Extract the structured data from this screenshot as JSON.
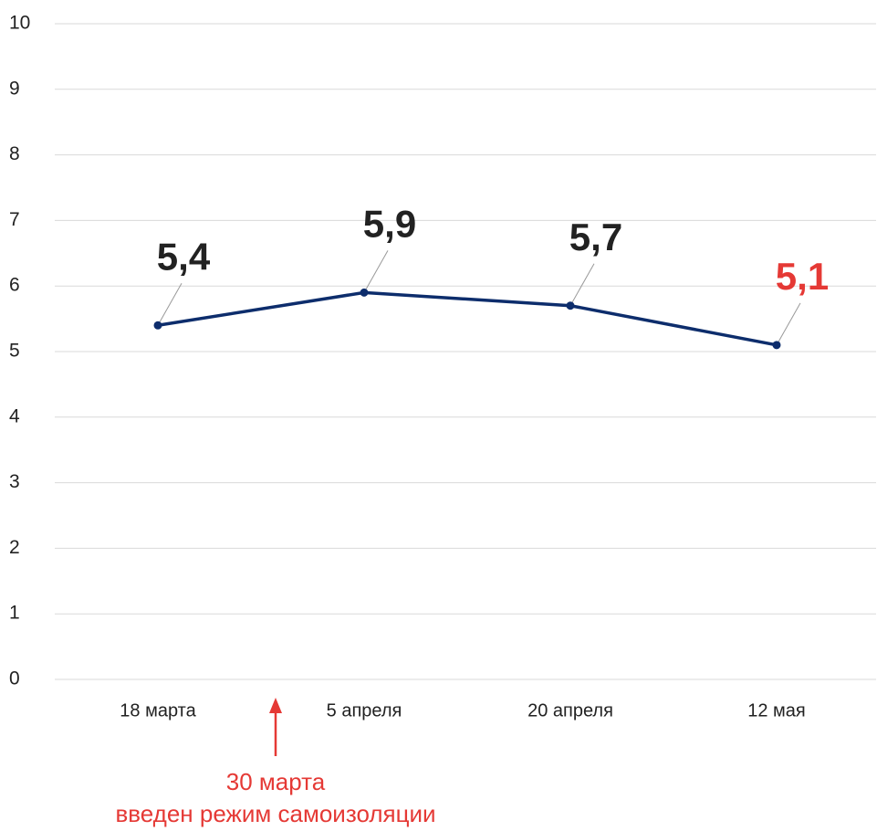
{
  "chart_data": {
    "type": "line",
    "categories": [
      "18 марта",
      "5 апреля",
      "20 апреля",
      "12 мая"
    ],
    "series": [
      {
        "color": "#0d2d6c",
        "values": [
          5.4,
          5.9,
          5.7,
          5.1
        ],
        "value_labels": [
          "5,4",
          "5,9",
          "5,7",
          "5,1"
        ],
        "label_colors": [
          "#222222",
          "#222222",
          "#222222",
          "#e53935"
        ]
      }
    ],
    "ylim": [
      0,
      10
    ],
    "yticks": [
      0,
      1,
      2,
      3,
      4,
      5,
      6,
      7,
      8,
      9,
      10
    ],
    "grid": true,
    "annotation": {
      "lines": [
        "30 марта",
        "введен режим самоизоляции"
      ],
      "color": "#e53935"
    }
  }
}
